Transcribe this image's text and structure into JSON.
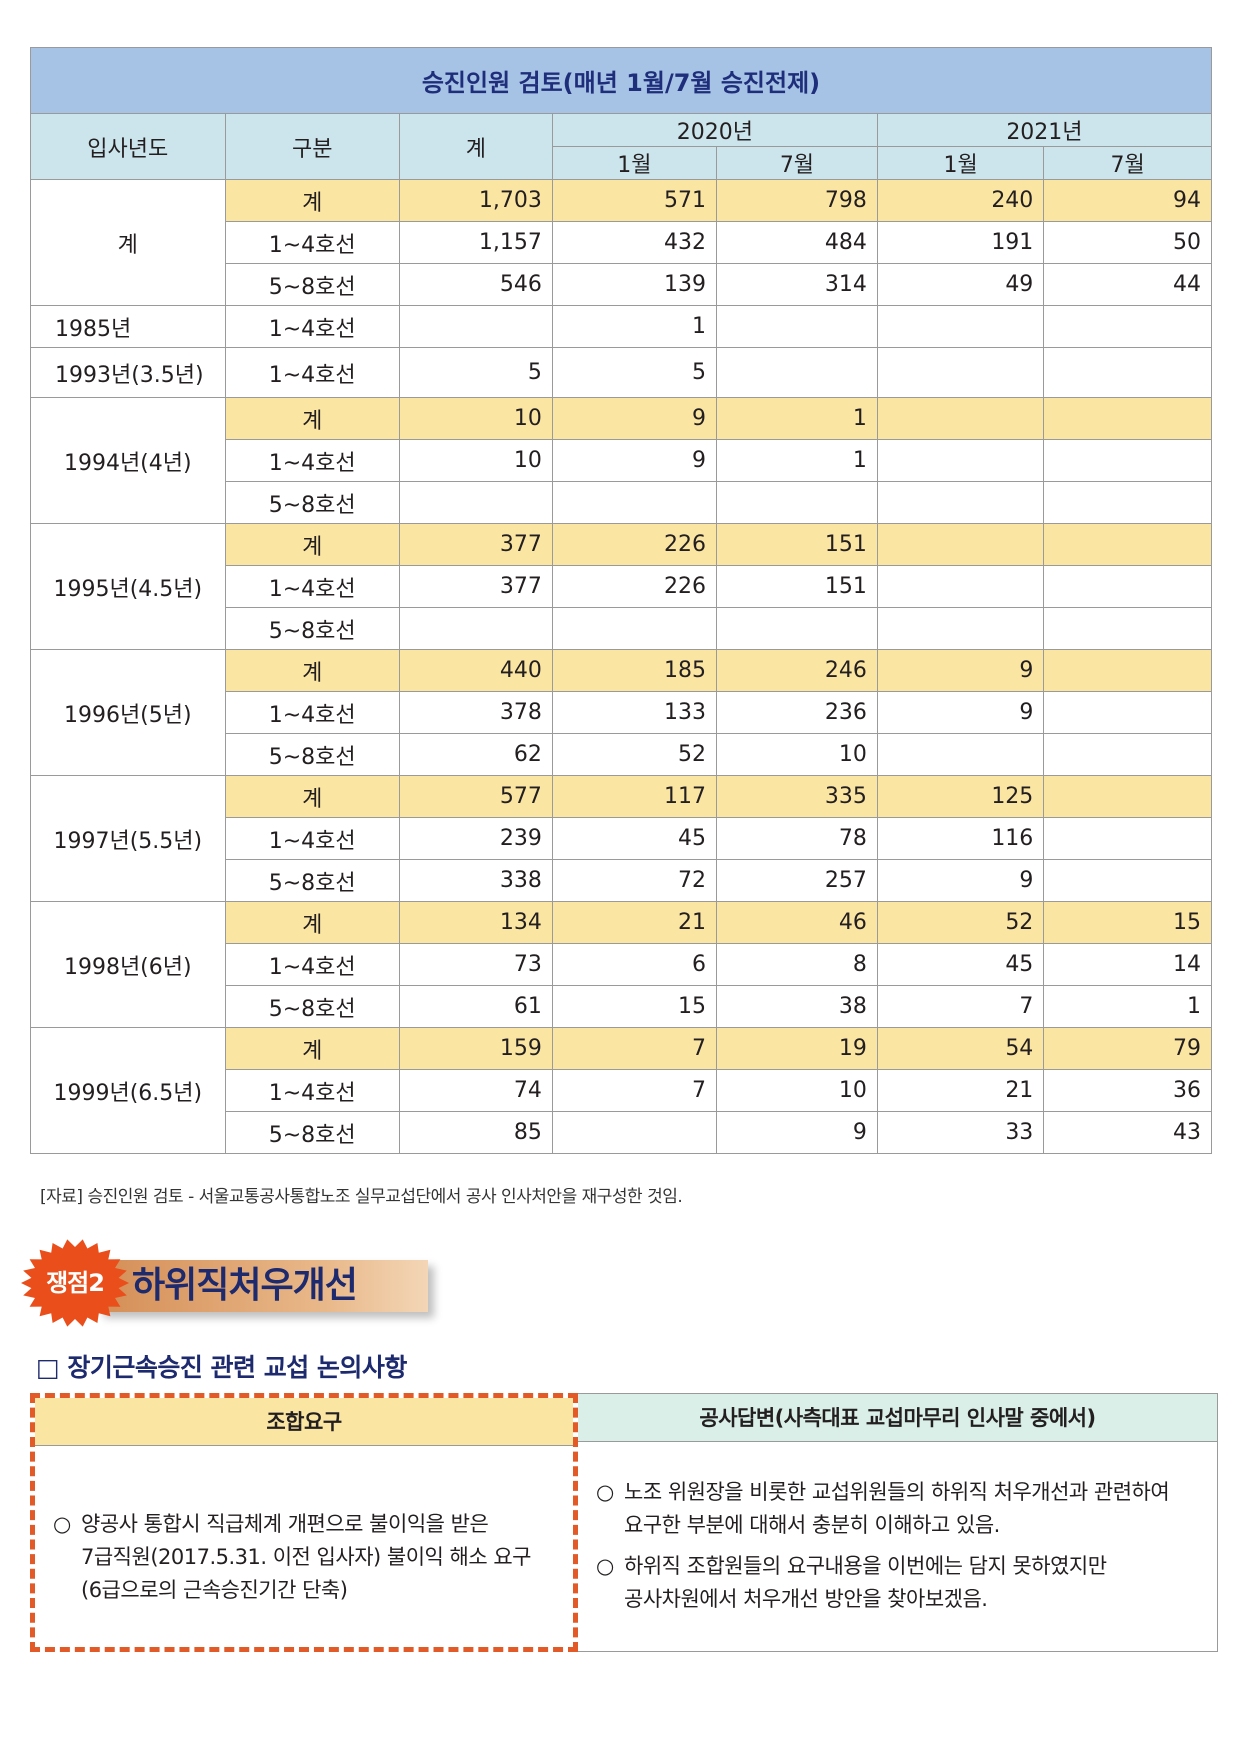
{
  "table": {
    "title": "승진인원 검토(매년 1월/7월 승진전제)",
    "headers": {
      "year": "입사년도",
      "category": "구분",
      "total": "계",
      "y2020": "2020년",
      "y2021": "2021년",
      "jan": "1월",
      "jul": "7월"
    },
    "groups": [
      {
        "year": "계",
        "rows": [
          {
            "label": "계",
            "total": "1,703",
            "y2020_jan": "571",
            "y2020_jul": "798",
            "y2021_jan": "240",
            "y2021_jul": "94"
          },
          {
            "label": "1~4호선",
            "total": "1,157",
            "y2020_jan": "432",
            "y2020_jul": "484",
            "y2021_jan": "191",
            "y2021_jul": "50"
          },
          {
            "label": "5~8호선",
            "total": "546",
            "y2020_jan": "139",
            "y2020_jul": "314",
            "y2021_jan": "49",
            "y2021_jul": "44"
          }
        ]
      },
      {
        "year": "1985년",
        "rows": [
          {
            "label": "1~4호선",
            "total": "",
            "y2020_jan": "1",
            "y2020_jul": "",
            "y2021_jan": "",
            "y2021_jul": ""
          }
        ]
      },
      {
        "year": "1993년(3.5년)",
        "rows": [
          {
            "label": "1~4호선",
            "total": "5",
            "y2020_jan": "5",
            "y2020_jul": "",
            "y2021_jan": "",
            "y2021_jul": ""
          }
        ]
      },
      {
        "year": "1994년(4년)",
        "rows": [
          {
            "label": "계",
            "total": "10",
            "y2020_jan": "9",
            "y2020_jul": "1",
            "y2021_jan": "",
            "y2021_jul": ""
          },
          {
            "label": "1~4호선",
            "total": "10",
            "y2020_jan": "9",
            "y2020_jul": "1",
            "y2021_jan": "",
            "y2021_jul": ""
          },
          {
            "label": "5~8호선",
            "total": "",
            "y2020_jan": "",
            "y2020_jul": "",
            "y2021_jan": "",
            "y2021_jul": ""
          }
        ]
      },
      {
        "year": "1995년(4.5년)",
        "rows": [
          {
            "label": "계",
            "total": "377",
            "y2020_jan": "226",
            "y2020_jul": "151",
            "y2021_jan": "",
            "y2021_jul": ""
          },
          {
            "label": "1~4호선",
            "total": "377",
            "y2020_jan": "226",
            "y2020_jul": "151",
            "y2021_jan": "",
            "y2021_jul": ""
          },
          {
            "label": "5~8호선",
            "total": "",
            "y2020_jan": "",
            "y2020_jul": "",
            "y2021_jan": "",
            "y2021_jul": ""
          }
        ]
      },
      {
        "year": "1996년(5년)",
        "rows": [
          {
            "label": "계",
            "total": "440",
            "y2020_jan": "185",
            "y2020_jul": "246",
            "y2021_jan": "9",
            "y2021_jul": ""
          },
          {
            "label": "1~4호선",
            "total": "378",
            "y2020_jan": "133",
            "y2020_jul": "236",
            "y2021_jan": "9",
            "y2021_jul": ""
          },
          {
            "label": "5~8호선",
            "total": "62",
            "y2020_jan": "52",
            "y2020_jul": "10",
            "y2021_jan": "",
            "y2021_jul": ""
          }
        ]
      },
      {
        "year": "1997년(5.5년)",
        "rows": [
          {
            "label": "계",
            "total": "577",
            "y2020_jan": "117",
            "y2020_jul": "335",
            "y2021_jan": "125",
            "y2021_jul": ""
          },
          {
            "label": "1~4호선",
            "total": "239",
            "y2020_jan": "45",
            "y2020_jul": "78",
            "y2021_jan": "116",
            "y2021_jul": ""
          },
          {
            "label": "5~8호선",
            "total": "338",
            "y2020_jan": "72",
            "y2020_jul": "257",
            "y2021_jan": "9",
            "y2021_jul": ""
          }
        ]
      },
      {
        "year": "1998년(6년)",
        "rows": [
          {
            "label": "계",
            "total": "134",
            "y2020_jan": "21",
            "y2020_jul": "46",
            "y2021_jan": "52",
            "y2021_jul": "15"
          },
          {
            "label": "1~4호선",
            "total": "73",
            "y2020_jan": "6",
            "y2020_jul": "8",
            "y2021_jan": "45",
            "y2021_jul": "14"
          },
          {
            "label": "5~8호선",
            "total": "61",
            "y2020_jan": "15",
            "y2020_jul": "38",
            "y2021_jan": "7",
            "y2021_jul": "1"
          }
        ]
      },
      {
        "year": "1999년(6.5년)",
        "rows": [
          {
            "label": "계",
            "total": "159",
            "y2020_jan": "7",
            "y2020_jul": "19",
            "y2021_jan": "54",
            "y2021_jul": "79"
          },
          {
            "label": "1~4호선",
            "total": "74",
            "y2020_jan": "7",
            "y2020_jul": "10",
            "y2021_jan": "21",
            "y2021_jul": "36"
          },
          {
            "label": "5~8호선",
            "total": "85",
            "y2020_jan": "",
            "y2020_jul": "9",
            "y2021_jan": "33",
            "y2021_jul": "43"
          }
        ]
      }
    ],
    "source_note": "[자료] 승진인원 검토 - 서울교통공사통합노조 실무교섭단에서 공사 인사처안을 재구성한 것임."
  },
  "issue": {
    "badge": "쟁점2",
    "title": "하위직처우개선",
    "burst_color": "#e94e1b",
    "band_color": "#d58e56"
  },
  "section": {
    "title": "□ 장기근속승진 관련 교섭 논의사항"
  },
  "compare": {
    "union": {
      "header": "조합요구",
      "items": [
        [
          "양공사 통합시 직급체계 개편으로 불이익을 받은",
          "7급직원(2017.5.31. 이전 입사자) 불이익 해소 요구",
          "(6급으로의 근속승진기간 단축)"
        ]
      ]
    },
    "company": {
      "header": "공사답변(사측대표 교섭마무리 인사말 중에서)",
      "items": [
        [
          "노조 위원장을 비롯한 교섭위원들의 하위직 처우개선과 관련하여",
          "요구한 부분에 대해서 충분히 이해하고 있음."
        ],
        [
          "하위직 조합원들의 요구내용을 이번에는 담지 못하였지만",
          "공사차원에서 처우개선 방안을 찾아보겠음."
        ]
      ],
      "bullet": "○"
    }
  },
  "colors": {
    "title_bg": "#a6c3e6",
    "header_bg": "#cce4ec",
    "total_row_bg": "#fbe5a3",
    "heading_text": "#1d2a6e",
    "union_border": "#e15a27"
  }
}
